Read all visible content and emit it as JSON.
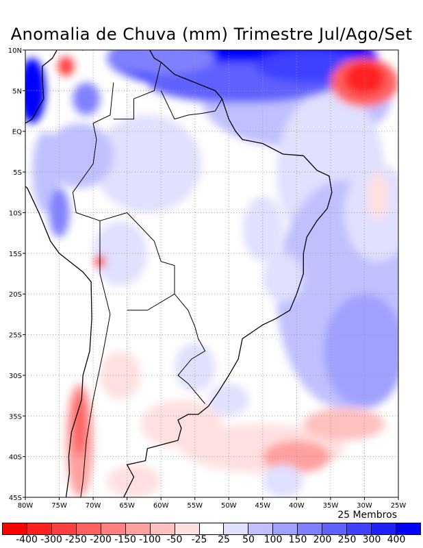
{
  "title": "Anomalia de Chuva (mm) Trimestre Jul/Ago/Set",
  "members": "25 Membros",
  "lat_labels": [
    "10N",
    "5N",
    "EQ",
    "5S",
    "10S",
    "15S",
    "20S",
    "25S",
    "30S",
    "35S",
    "40S",
    "45S"
  ],
  "lon_labels": [
    "80W",
    "75W",
    "70W",
    "65W",
    "60W",
    "55W",
    "50W",
    "45W",
    "40W",
    "35W",
    "30W",
    "25W"
  ],
  "colorbar": {
    "labels": [
      "-400",
      "-300",
      "-250",
      "-200",
      "-150",
      "-100",
      "-50",
      "-25",
      "25",
      "50",
      "100",
      "150",
      "200",
      "250",
      "300",
      "400"
    ],
    "colors": [
      "#ff0000",
      "#ff2020",
      "#ff4040",
      "#ff6060",
      "#ff8080",
      "#ffa0a0",
      "#ffc0c0",
      "#ffe0e0",
      "#ffffff",
      "#e0e0ff",
      "#c0c0ff",
      "#a0a0ff",
      "#8080ff",
      "#6060ff",
      "#4040ff",
      "#2020ff",
      "#0000ff"
    ]
  }
}
